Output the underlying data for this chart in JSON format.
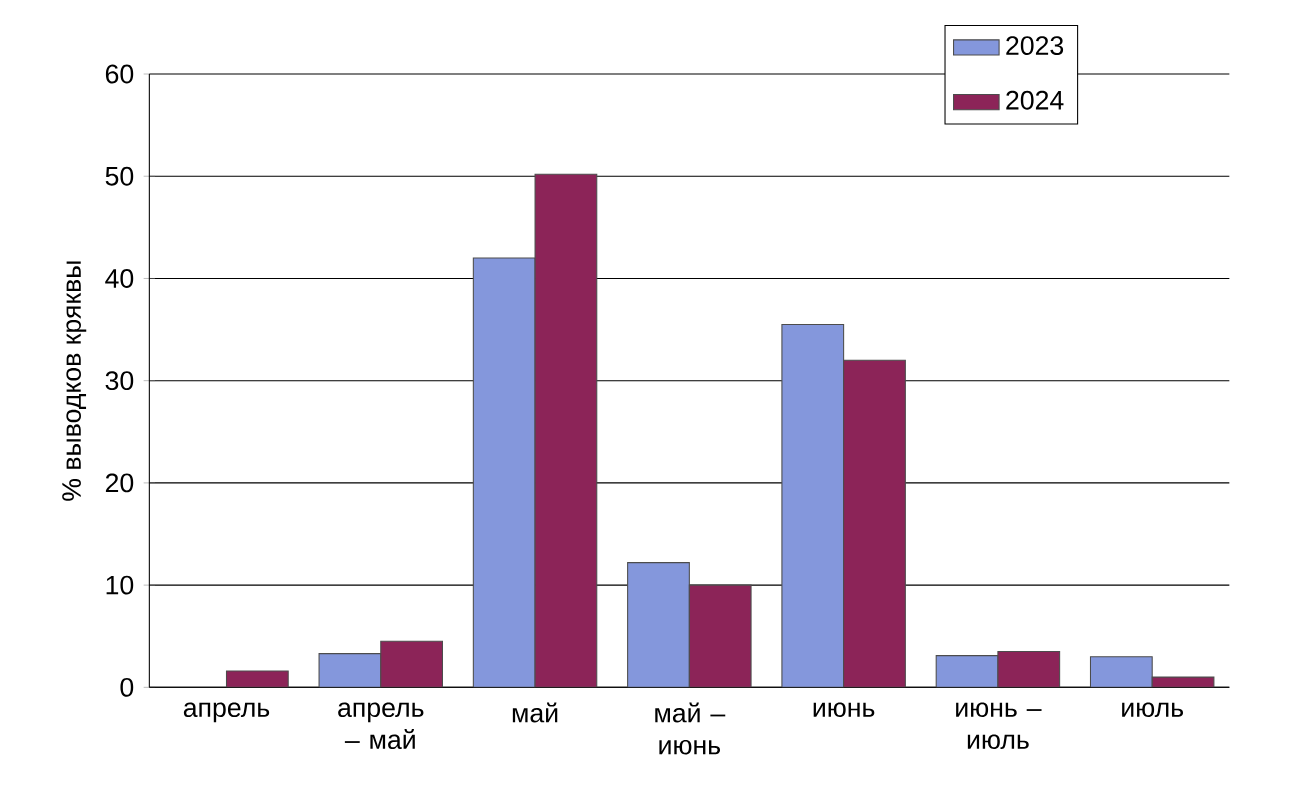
{
  "chart_data": {
    "type": "bar",
    "ylabel": "% выводков кряквы",
    "categories": [
      "апрель",
      "апрель – май",
      "май",
      "май – июнь",
      "июнь",
      "июнь – июль",
      "июль"
    ],
    "series": [
      {
        "name": "2023",
        "color": "#8497dc",
        "values": [
          null,
          3.3,
          42,
          12.2,
          35.5,
          3.1,
          3
        ]
      },
      {
        "name": "2024",
        "color": "#8c2458",
        "values": [
          1.6,
          4.5,
          50.2,
          10,
          32,
          3.5,
          1
        ]
      }
    ],
    "ylim": [
      0,
      60
    ],
    "yticks": [
      0,
      10,
      20,
      30,
      40,
      50,
      60
    ],
    "grid": "y",
    "legend": "top right"
  }
}
